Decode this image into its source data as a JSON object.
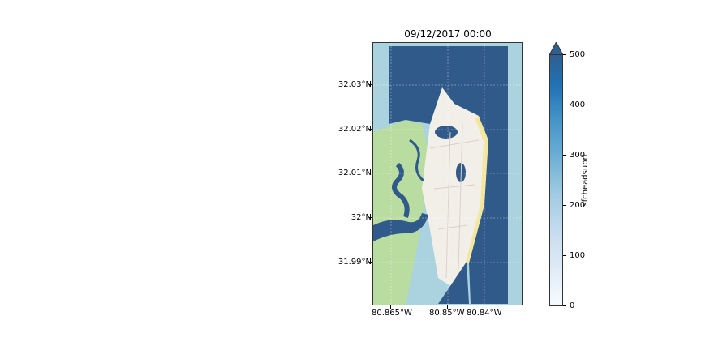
{
  "title": "09/12/2017 00:00",
  "y_ticks": [
    "32.03°N",
    "32.02°N",
    "32.01°N",
    "32°N",
    "31.99°N"
  ],
  "x_ticks": [
    "80.865°W",
    "80.85°W",
    "80.84°W"
  ],
  "colorbar": {
    "label": "sfcheadsubrt",
    "ticks": [
      "500",
      "400",
      "300",
      "200",
      "100",
      "0"
    ],
    "range": [
      0,
      500
    ],
    "extend": "max",
    "colormap": [
      "#f7fbff",
      "#2f5f8f"
    ]
  },
  "colors": {
    "water": "#abd3df",
    "flood_overlay": "#2f5a8a",
    "land": "#f2efe9",
    "vegetation": "#b9dca0",
    "beach": "#f3e7a0"
  }
}
